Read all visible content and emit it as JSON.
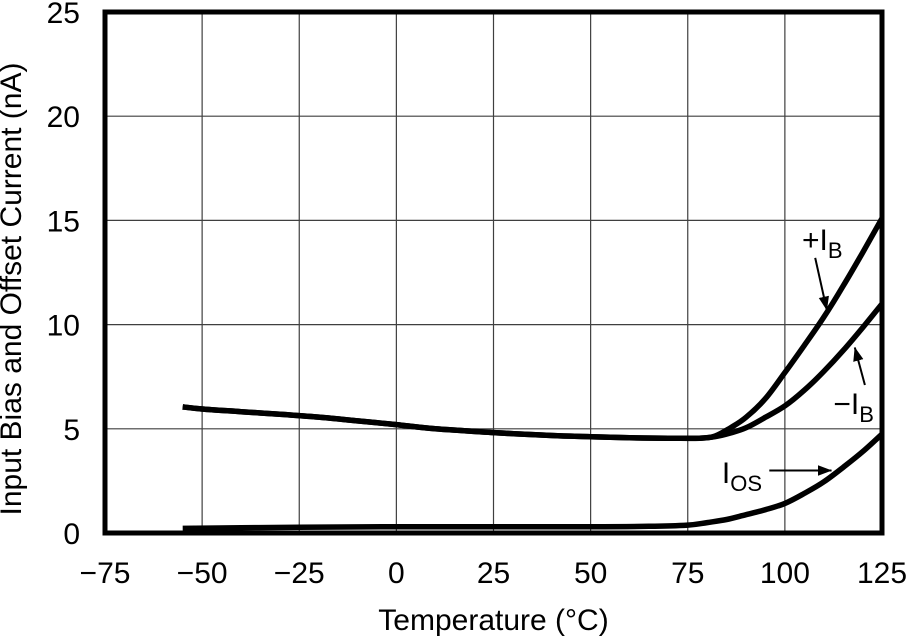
{
  "chart_data": {
    "type": "line",
    "title": "",
    "xlabel": "Temperature (°C)",
    "ylabel": "Input Bias and Offset Current (nA)",
    "xlim": [
      -75,
      125
    ],
    "ylim": [
      0,
      25
    ],
    "grid": true,
    "legend_position": "inline-annotations",
    "colors": {
      "curve": "#000000",
      "grid": "#3f3f3f",
      "frame": "#000000",
      "text": "#000000",
      "background": "#ffffff"
    },
    "x_ticks": [
      {
        "v": -75,
        "label": "−75"
      },
      {
        "v": -50,
        "label": "−50"
      },
      {
        "v": -25,
        "label": "−25"
      },
      {
        "v": 0,
        "label": "0"
      },
      {
        "v": 25,
        "label": "25"
      },
      {
        "v": 50,
        "label": "50"
      },
      {
        "v": 75,
        "label": "75"
      },
      {
        "v": 100,
        "label": "100"
      },
      {
        "v": 125,
        "label": "125"
      }
    ],
    "y_ticks": [
      {
        "v": 0,
        "label": "0"
      },
      {
        "v": 5,
        "label": "5"
      },
      {
        "v": 10,
        "label": "10"
      },
      {
        "v": 15,
        "label": "15"
      },
      {
        "v": 20,
        "label": "20"
      },
      {
        "v": 25,
        "label": "25"
      }
    ],
    "series": [
      {
        "key": "plus-ib",
        "name": "+IB",
        "points": [
          [
            -55,
            6.05
          ],
          [
            -50,
            5.95
          ],
          [
            -40,
            5.82
          ],
          [
            -30,
            5.7
          ],
          [
            -20,
            5.56
          ],
          [
            -10,
            5.38
          ],
          [
            0,
            5.2
          ],
          [
            10,
            5.0
          ],
          [
            25,
            4.82
          ],
          [
            40,
            4.68
          ],
          [
            50,
            4.62
          ],
          [
            60,
            4.57
          ],
          [
            70,
            4.55
          ],
          [
            78,
            4.55
          ],
          [
            82,
            4.65
          ],
          [
            86,
            5.05
          ],
          [
            90,
            5.55
          ],
          [
            95,
            6.45
          ],
          [
            100,
            7.7
          ],
          [
            105,
            9.0
          ],
          [
            110,
            10.35
          ],
          [
            115,
            11.85
          ],
          [
            120,
            13.45
          ],
          [
            125,
            15.1
          ]
        ]
      },
      {
        "key": "minus-ib",
        "name": "−IB",
        "points": [
          [
            -55,
            6.05
          ],
          [
            -50,
            5.95
          ],
          [
            -40,
            5.82
          ],
          [
            -30,
            5.7
          ],
          [
            -20,
            5.56
          ],
          [
            -10,
            5.38
          ],
          [
            0,
            5.2
          ],
          [
            10,
            5.0
          ],
          [
            25,
            4.82
          ],
          [
            40,
            4.68
          ],
          [
            50,
            4.62
          ],
          [
            60,
            4.57
          ],
          [
            70,
            4.55
          ],
          [
            78,
            4.55
          ],
          [
            82,
            4.62
          ],
          [
            86,
            4.8
          ],
          [
            90,
            5.05
          ],
          [
            95,
            5.55
          ],
          [
            100,
            6.1
          ],
          [
            105,
            6.85
          ],
          [
            110,
            7.75
          ],
          [
            115,
            8.75
          ],
          [
            120,
            9.85
          ],
          [
            125,
            11.0
          ]
        ]
      },
      {
        "key": "ios",
        "name": "IOS",
        "points": [
          [
            -55,
            0.22
          ],
          [
            -40,
            0.25
          ],
          [
            -25,
            0.28
          ],
          [
            0,
            0.3
          ],
          [
            25,
            0.3
          ],
          [
            50,
            0.3
          ],
          [
            65,
            0.32
          ],
          [
            75,
            0.38
          ],
          [
            80,
            0.5
          ],
          [
            85,
            0.65
          ],
          [
            90,
            0.88
          ],
          [
            95,
            1.12
          ],
          [
            100,
            1.42
          ],
          [
            105,
            1.9
          ],
          [
            110,
            2.45
          ],
          [
            115,
            3.15
          ],
          [
            120,
            3.9
          ],
          [
            125,
            4.75
          ]
        ]
      }
    ],
    "annotations": [
      {
        "key": "plus-ib",
        "main": "+I",
        "sub": "B",
        "text_x": 104.4,
        "text_y": 13.58,
        "arrow": [
          [
            107.8,
            13.2
          ],
          [
            110.8,
            10.7
          ]
        ]
      },
      {
        "key": "minus-ib",
        "main": "−I",
        "sub": "B",
        "text_x": 112.5,
        "text_y": 5.7,
        "arrow": [
          [
            120.6,
            7.1
          ],
          [
            118.0,
            8.9
          ]
        ]
      },
      {
        "key": "ios",
        "main": "I",
        "sub": "OS",
        "text_x": 83.8,
        "text_y": 2.4,
        "arrow": [
          [
            96.0,
            3.0
          ],
          [
            112.0,
            3.0
          ]
        ]
      }
    ]
  }
}
